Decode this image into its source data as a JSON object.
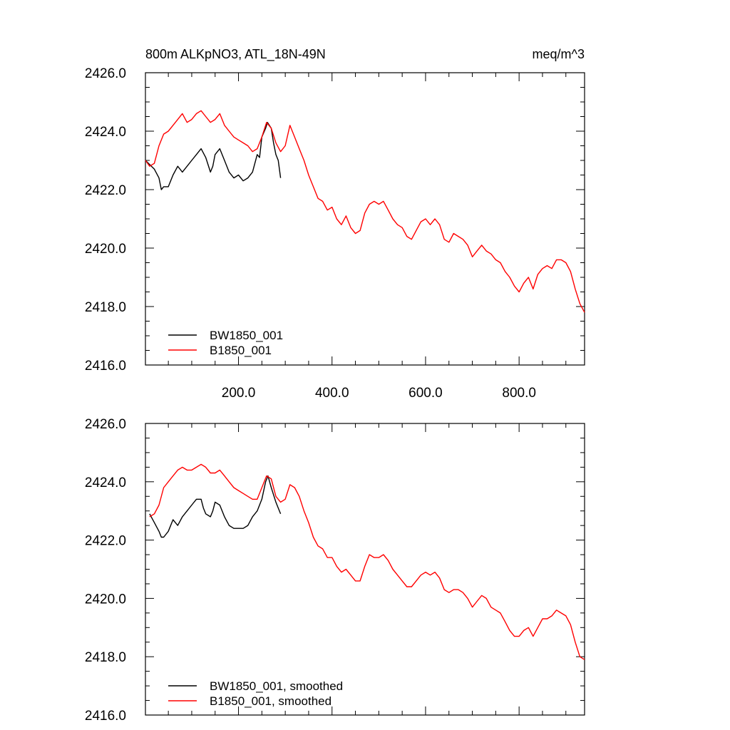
{
  "figure": {
    "title_left": "800m ALKpNO3, ATL_18N-49N",
    "title_right": "meq/m^3"
  },
  "colors": {
    "bw_series": "#000000",
    "b_series": "#ff0000",
    "frame": "#000000",
    "background": "#ffffff"
  },
  "chart_data": [
    {
      "type": "line",
      "title": "800m ALKpNO3, ATL_18N-49N",
      "units": "meq/m^3",
      "xlim": [
        1,
        940
      ],
      "ylim": [
        2416.0,
        2426.0
      ],
      "x_ticks": [
        200.0,
        400.0,
        600.0,
        800.0
      ],
      "x_tick_labels": [
        "200.0",
        "400.0",
        "600.0",
        "800.0"
      ],
      "y_ticks": [
        2416.0,
        2418.0,
        2420.0,
        2422.0,
        2424.0,
        2426.0
      ],
      "y_tick_labels": [
        "2416.0",
        "2418.0",
        "2420.0",
        "2422.0",
        "2424.0",
        "2426.0"
      ],
      "grid": false,
      "legend_position": "bottom-left",
      "series": [
        {
          "name": "BW1850_001",
          "color": "#000000",
          "x": [
            1,
            20,
            30,
            35,
            40,
            50,
            60,
            70,
            80,
            90,
            100,
            110,
            120,
            130,
            140,
            145,
            150,
            160,
            170,
            180,
            190,
            200,
            210,
            220,
            230,
            240,
            245,
            250,
            258,
            262,
            270,
            275,
            280,
            285,
            290
          ],
          "y": [
            2423.0,
            2422.7,
            2422.4,
            2422.0,
            2422.1,
            2422.1,
            2422.5,
            2422.8,
            2422.6,
            2422.8,
            2423.0,
            2423.2,
            2423.4,
            2423.1,
            2422.6,
            2422.8,
            2423.2,
            2423.4,
            2423.0,
            2422.6,
            2422.4,
            2422.5,
            2422.3,
            2422.4,
            2422.6,
            2423.2,
            2423.1,
            2423.8,
            2424.1,
            2424.3,
            2424.1,
            2423.6,
            2423.2,
            2423.0,
            2422.4
          ]
        },
        {
          "name": "B1850_001",
          "color": "#ff0000",
          "x": [
            1,
            10,
            20,
            30,
            40,
            50,
            60,
            70,
            80,
            90,
            100,
            110,
            120,
            130,
            140,
            150,
            160,
            170,
            180,
            190,
            200,
            210,
            220,
            230,
            240,
            250,
            260,
            270,
            280,
            290,
            300,
            310,
            320,
            330,
            340,
            350,
            360,
            370,
            380,
            390,
            400,
            410,
            420,
            430,
            440,
            450,
            460,
            470,
            480,
            490,
            500,
            510,
            520,
            530,
            540,
            550,
            560,
            570,
            580,
            590,
            600,
            610,
            620,
            630,
            640,
            650,
            660,
            670,
            680,
            690,
            700,
            710,
            720,
            730,
            740,
            750,
            760,
            770,
            780,
            790,
            800,
            810,
            820,
            830,
            840,
            850,
            860,
            870,
            880,
            890,
            900,
            910,
            920,
            930,
            940
          ],
          "y": [
            2423.0,
            2422.8,
            2422.9,
            2423.5,
            2423.9,
            2424.0,
            2424.2,
            2424.4,
            2424.6,
            2424.3,
            2424.4,
            2424.6,
            2424.7,
            2424.5,
            2424.3,
            2424.4,
            2424.6,
            2424.2,
            2424.0,
            2423.8,
            2423.7,
            2423.6,
            2423.5,
            2423.3,
            2423.4,
            2423.8,
            2424.3,
            2424.1,
            2423.6,
            2423.3,
            2423.5,
            2424.2,
            2423.8,
            2423.4,
            2423.0,
            2422.5,
            2422.1,
            2421.7,
            2421.6,
            2421.3,
            2421.4,
            2421.0,
            2420.8,
            2421.1,
            2420.7,
            2420.5,
            2420.6,
            2421.2,
            2421.5,
            2421.6,
            2421.5,
            2421.6,
            2421.3,
            2421.0,
            2420.8,
            2420.7,
            2420.4,
            2420.3,
            2420.6,
            2420.9,
            2421.0,
            2420.8,
            2421.0,
            2420.8,
            2420.3,
            2420.2,
            2420.5,
            2420.4,
            2420.3,
            2420.1,
            2419.7,
            2419.9,
            2420.1,
            2419.9,
            2419.8,
            2419.6,
            2419.5,
            2419.2,
            2419.0,
            2418.7,
            2418.5,
            2418.8,
            2419.0,
            2418.6,
            2419.1,
            2419.3,
            2419.4,
            2419.3,
            2419.6,
            2419.6,
            2419.5,
            2419.2,
            2418.6,
            2418.1,
            2417.8
          ]
        }
      ]
    },
    {
      "type": "line",
      "xlim": [
        1,
        940
      ],
      "ylim": [
        2416.0,
        2426.0
      ],
      "y_ticks": [
        2416.0,
        2418.0,
        2420.0,
        2422.0,
        2424.0,
        2426.0
      ],
      "y_tick_labels": [
        "2416.0",
        "2418.0",
        "2420.0",
        "2422.0",
        "2424.0",
        "2426.0"
      ],
      "grid": false,
      "legend_position": "bottom-left",
      "series": [
        {
          "name": "BW1850_001, smoothed",
          "color": "#000000",
          "x": [
            10,
            20,
            30,
            35,
            40,
            50,
            60,
            65,
            70,
            80,
            90,
            100,
            110,
            120,
            125,
            130,
            140,
            145,
            150,
            160,
            170,
            180,
            190,
            200,
            210,
            220,
            230,
            240,
            250,
            258,
            263,
            270,
            280,
            285,
            290
          ],
          "y": [
            2422.9,
            2422.6,
            2422.3,
            2422.1,
            2422.1,
            2422.3,
            2422.7,
            2422.6,
            2422.5,
            2422.8,
            2423.0,
            2423.2,
            2423.4,
            2423.4,
            2423.1,
            2422.9,
            2422.8,
            2423.0,
            2423.3,
            2423.2,
            2422.8,
            2422.5,
            2422.4,
            2422.4,
            2422.4,
            2422.5,
            2422.8,
            2423.0,
            2423.4,
            2424.0,
            2424.2,
            2423.8,
            2423.3,
            2423.1,
            2422.9
          ]
        },
        {
          "name": "B1850_001, smoothed",
          "color": "#ff0000",
          "x": [
            10,
            20,
            30,
            40,
            50,
            60,
            70,
            80,
            90,
            100,
            110,
            120,
            130,
            140,
            150,
            160,
            170,
            180,
            190,
            200,
            210,
            220,
            230,
            240,
            250,
            260,
            270,
            280,
            290,
            300,
            310,
            320,
            330,
            340,
            350,
            360,
            370,
            380,
            390,
            400,
            410,
            420,
            430,
            440,
            450,
            460,
            470,
            480,
            490,
            500,
            510,
            520,
            530,
            540,
            550,
            560,
            570,
            580,
            590,
            600,
            610,
            620,
            630,
            640,
            650,
            660,
            670,
            680,
            690,
            700,
            710,
            720,
            730,
            740,
            750,
            760,
            770,
            780,
            790,
            800,
            810,
            820,
            830,
            840,
            850,
            860,
            870,
            880,
            890,
            900,
            910,
            920,
            930,
            940
          ],
          "y": [
            2422.8,
            2422.9,
            2423.2,
            2423.8,
            2424.0,
            2424.2,
            2424.4,
            2424.5,
            2424.4,
            2424.4,
            2424.5,
            2424.6,
            2424.5,
            2424.3,
            2424.3,
            2424.4,
            2424.2,
            2424.0,
            2423.8,
            2423.7,
            2423.6,
            2423.5,
            2423.4,
            2423.4,
            2423.8,
            2424.2,
            2424.1,
            2423.5,
            2423.3,
            2423.4,
            2423.9,
            2423.8,
            2423.5,
            2423.0,
            2422.6,
            2422.1,
            2421.8,
            2421.7,
            2421.4,
            2421.4,
            2421.1,
            2420.9,
            2421.0,
            2420.8,
            2420.6,
            2420.6,
            2421.1,
            2421.5,
            2421.4,
            2421.4,
            2421.5,
            2421.3,
            2421.0,
            2420.8,
            2420.6,
            2420.4,
            2420.4,
            2420.6,
            2420.8,
            2420.9,
            2420.8,
            2420.9,
            2420.7,
            2420.3,
            2420.2,
            2420.3,
            2420.3,
            2420.2,
            2420.0,
            2419.7,
            2419.9,
            2420.1,
            2420.0,
            2419.7,
            2419.6,
            2419.5,
            2419.2,
            2418.9,
            2418.7,
            2418.7,
            2418.9,
            2419.0,
            2418.7,
            2419.0,
            2419.3,
            2419.3,
            2419.4,
            2419.6,
            2419.5,
            2419.4,
            2419.1,
            2418.5,
            2418.0,
            2417.9
          ]
        }
      ]
    }
  ]
}
